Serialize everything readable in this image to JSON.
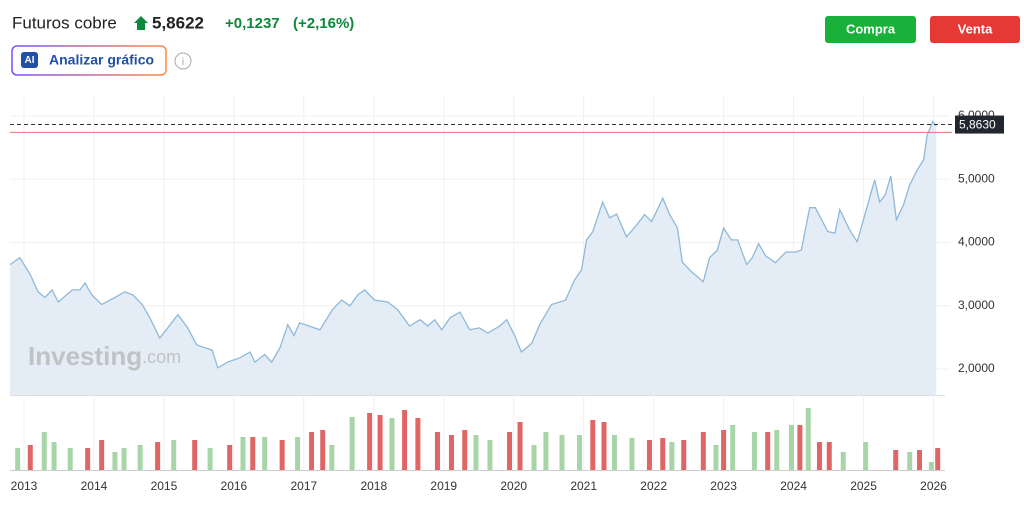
{
  "header": {
    "title": "Futuros cobre",
    "price": "5,8622",
    "change": "+0,1237",
    "change_pct": "(+2,16%)",
    "ai_icon": "AI",
    "ai_button": "Analizar gráfico",
    "buy": "Compra",
    "sell": "Venta"
  },
  "chart_data": [
    {
      "type": "area",
      "color": "#8fb9da",
      "fill": "#e4edf6",
      "x": [
        2012.8,
        2012.94,
        2013.09,
        2013.2,
        2013.3,
        2013.4,
        2013.49,
        2013.69,
        2013.8,
        2013.87,
        2013.97,
        2014.11,
        2014.3,
        2014.44,
        2014.56,
        2014.69,
        2014.8,
        2014.94,
        2015.09,
        2015.2,
        2015.34,
        2015.47,
        2015.69,
        2015.77,
        2015.91,
        2016.09,
        2016.23,
        2016.3,
        2016.44,
        2016.54,
        2016.66,
        2016.77,
        2016.86,
        2016.94,
        2017.23,
        2017.41,
        2017.54,
        2017.66,
        2017.77,
        2017.87,
        2018.01,
        2018.2,
        2018.34,
        2018.51,
        2018.66,
        2018.77,
        2018.87,
        2018.97,
        2019.09,
        2019.23,
        2019.37,
        2019.51,
        2019.63,
        2019.8,
        2019.9,
        2020.01,
        2020.11,
        2020.26,
        2020.37,
        2020.54,
        2020.74,
        2020.87,
        2020.97,
        2021.04,
        2021.13,
        2021.27,
        2021.37,
        2021.47,
        2021.61,
        2021.76,
        2021.87,
        2021.97,
        2022.13,
        2022.23,
        2022.34,
        2022.41,
        2022.54,
        2022.71,
        2022.8,
        2022.91,
        2023.0,
        2023.11,
        2023.2,
        2023.33,
        2023.41,
        2023.5,
        2023.6,
        2023.74,
        2023.89,
        2024.03,
        2024.11,
        2024.23,
        2024.31,
        2024.49,
        2024.59,
        2024.66,
        2024.8,
        2024.91,
        2025.03,
        2025.16,
        2025.23,
        2025.31,
        2025.39,
        2025.47,
        2025.57,
        2025.66,
        2025.77,
        2025.86,
        2025.91,
        2025.99,
        2026.04
      ],
      "values": [
        3.65,
        3.76,
        3.49,
        3.22,
        3.13,
        3.25,
        3.06,
        3.25,
        3.25,
        3.36,
        3.17,
        3.02,
        3.13,
        3.22,
        3.17,
        3.02,
        2.81,
        2.49,
        2.7,
        2.86,
        2.65,
        2.38,
        2.3,
        2.02,
        2.11,
        2.18,
        2.27,
        2.11,
        2.23,
        2.11,
        2.34,
        2.7,
        2.53,
        2.73,
        2.62,
        2.94,
        3.09,
        3.0,
        3.17,
        3.25,
        3.09,
        3.06,
        2.94,
        2.68,
        2.78,
        2.68,
        2.78,
        2.62,
        2.81,
        2.9,
        2.62,
        2.65,
        2.57,
        2.68,
        2.78,
        2.54,
        2.27,
        2.41,
        2.7,
        3.02,
        3.09,
        3.41,
        3.57,
        4.04,
        4.17,
        4.64,
        4.39,
        4.45,
        4.09,
        4.28,
        4.44,
        4.33,
        4.7,
        4.44,
        4.23,
        3.69,
        3.54,
        3.38,
        3.76,
        3.88,
        4.23,
        4.04,
        4.04,
        3.65,
        3.76,
        3.98,
        3.79,
        3.68,
        3.85,
        3.85,
        3.88,
        4.55,
        4.55,
        4.17,
        4.15,
        4.52,
        4.2,
        4.01,
        4.48,
        4.99,
        4.64,
        4.75,
        5.05,
        4.36,
        4.59,
        4.91,
        5.15,
        5.31,
        5.7,
        5.91,
        5.84
      ],
      "xlim": [
        2012.8,
        2026.15
      ],
      "ylim": [
        1.59,
        6.33
      ],
      "xticks": [
        2013,
        2014,
        2015,
        2016,
        2017,
        2018,
        2019,
        2020,
        2021,
        2022,
        2023,
        2024,
        2025,
        2026
      ],
      "yticks": [
        {
          "value": 2,
          "label": "2,0000"
        },
        {
          "value": 3,
          "label": "3,0000"
        },
        {
          "value": 4,
          "label": "4,0000"
        },
        {
          "value": 5,
          "label": "5,0000"
        },
        {
          "value": 6,
          "label": "6,0000"
        }
      ],
      "grid": true,
      "last_price": {
        "value": 5.863,
        "label": "5,8630"
      },
      "prev_close": 5.7385,
      "watermark": [
        "Investing",
        ".com"
      ]
    },
    {
      "type": "bar",
      "xlim": [
        2012.8,
        2026.15
      ],
      "ylim": [
        0,
        70
      ],
      "x": [
        2012.91,
        2013.09,
        2013.29,
        2013.43,
        2013.66,
        2013.91,
        2014.11,
        2014.3,
        2014.43,
        2014.66,
        2014.91,
        2015.14,
        2015.44,
        2015.66,
        2015.94,
        2016.13,
        2016.27,
        2016.44,
        2016.69,
        2016.91,
        2017.11,
        2017.27,
        2017.4,
        2017.69,
        2017.94,
        2018.09,
        2018.26,
        2018.44,
        2018.63,
        2018.91,
        2019.11,
        2019.3,
        2019.46,
        2019.66,
        2019.94,
        2020.09,
        2020.29,
        2020.46,
        2020.69,
        2020.94,
        2021.13,
        2021.29,
        2021.44,
        2021.69,
        2021.94,
        2022.13,
        2022.26,
        2022.43,
        2022.71,
        2022.89,
        2023.0,
        2023.13,
        2023.44,
        2023.63,
        2023.76,
        2023.97,
        2024.09,
        2024.21,
        2024.37,
        2024.51,
        2024.71,
        2025.03,
        2025.46,
        2025.66,
        2025.8,
        2025.97,
        2026.06
      ],
      "values": [
        22,
        25,
        38,
        28,
        22,
        22,
        30,
        18,
        22,
        25,
        28,
        30,
        30,
        22,
        25,
        33,
        33,
        33,
        30,
        33,
        38,
        40,
        25,
        53,
        57,
        55,
        52,
        60,
        52,
        38,
        35,
        40,
        35,
        30,
        38,
        48,
        25,
        38,
        35,
        35,
        50,
        48,
        35,
        32,
        30,
        32,
        28,
        30,
        38,
        25,
        40,
        45,
        38,
        38,
        40,
        45,
        45,
        62,
        28,
        28,
        18,
        28,
        20,
        18,
        20,
        8,
        22
      ],
      "colors": [
        "#a8d5a8",
        "#e06666",
        "#a8d5a8",
        "#a8d5a8",
        "#a8d5a8",
        "#e06666",
        "#e06666",
        "#a8d5a8",
        "#a8d5a8",
        "#a8d5a8",
        "#e06666",
        "#a8d5a8",
        "#e06666",
        "#a8d5a8",
        "#e06666",
        "#a8d5a8",
        "#e06666",
        "#a8d5a8",
        "#e06666",
        "#a8d5a8",
        "#e06666",
        "#e06666",
        "#a8d5a8",
        "#a8d5a8",
        "#e06666",
        "#e06666",
        "#a8d5a8",
        "#e06666",
        "#e06666",
        "#e06666",
        "#e06666",
        "#e06666",
        "#a8d5a8",
        "#a8d5a8",
        "#e06666",
        "#e06666",
        "#a8d5a8",
        "#a8d5a8",
        "#a8d5a8",
        "#a8d5a8",
        "#e06666",
        "#e06666",
        "#a8d5a8",
        "#a8d5a8",
        "#e06666",
        "#e06666",
        "#a8d5a8",
        "#e06666",
        "#e06666",
        "#a8d5a8",
        "#e06666",
        "#a8d5a8",
        "#a8d5a8",
        "#e06666",
        "#a8d5a8",
        "#a8d5a8",
        "#e06666",
        "#a8d5a8",
        "#e06666",
        "#e06666",
        "#a8d5a8",
        "#a8d5a8",
        "#e06666",
        "#a8d5a8",
        "#e06666",
        "#a8d5a8",
        "#e06666"
      ]
    }
  ]
}
